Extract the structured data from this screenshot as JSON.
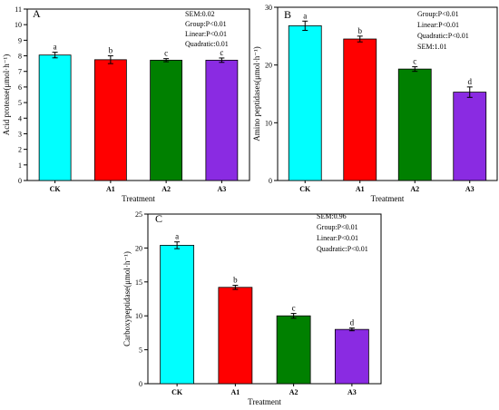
{
  "chart_data": [
    {
      "type": "bar",
      "panel_letter": "A",
      "categories": [
        "CK",
        "A1",
        "A2",
        "A3"
      ],
      "values": [
        8.05,
        7.75,
        7.72,
        7.72
      ],
      "errors": [
        0.18,
        0.25,
        0.1,
        0.14
      ],
      "letters": [
        "a",
        "b",
        "c",
        "c"
      ],
      "colors": [
        "#00FFFF",
        "#FF0000",
        "#008000",
        "#8A2BE2"
      ],
      "stats": [
        "SEM:0.02",
        "Group:P<0.01",
        "Linear:P<0.01",
        "Quadratic:0.01"
      ],
      "xlabel": "Treatment",
      "ylabel": "Acid protease(μmol·h⁻¹)",
      "ylim": [
        0,
        11
      ],
      "yticks": [
        0,
        1,
        2,
        3,
        4,
        5,
        6,
        7,
        8,
        9,
        10,
        11
      ],
      "grid": false,
      "legend": "none"
    },
    {
      "type": "bar",
      "panel_letter": "B",
      "categories": [
        "CK",
        "A1",
        "A2",
        "A3"
      ],
      "values": [
        26.8,
        24.5,
        19.3,
        15.3
      ],
      "errors": [
        0.8,
        0.5,
        0.4,
        0.9
      ],
      "letters": [
        "a",
        "b",
        "c",
        "d"
      ],
      "colors": [
        "#00FFFF",
        "#FF0000",
        "#008000",
        "#8A2BE2"
      ],
      "stats": [
        "Group:P<0.01",
        "Linear:P<0.01",
        "Quadratic:P<0.01",
        "SEM:1.01"
      ],
      "xlabel": "Treatment",
      "ylabel": "Amino peptidases(μmol·h⁻¹)",
      "ylim": [
        0,
        30
      ],
      "yticks": [
        0,
        10,
        20,
        30
      ],
      "grid": false,
      "legend": "none"
    },
    {
      "type": "bar",
      "panel_letter": "C",
      "categories": [
        "CK",
        "A1",
        "A2",
        "A3"
      ],
      "values": [
        20.4,
        14.2,
        10.0,
        8.0
      ],
      "errors": [
        0.5,
        0.3,
        0.35,
        0.2
      ],
      "letters": [
        "a",
        "b",
        "c",
        "d"
      ],
      "colors": [
        "#00FFFF",
        "#FF0000",
        "#008000",
        "#8A2BE2"
      ],
      "stats": [
        "SEM:0.96",
        "Group:P<0.01",
        "Linear:P<0.01",
        "Quadratic:P<0.01"
      ],
      "xlabel": "Treatment",
      "ylabel": "Carboxypeptidase(μmol·h⁻¹)",
      "ylim": [
        0,
        25
      ],
      "yticks": [
        0,
        5,
        10,
        15,
        20,
        25
      ],
      "grid": false,
      "legend": "none"
    }
  ]
}
